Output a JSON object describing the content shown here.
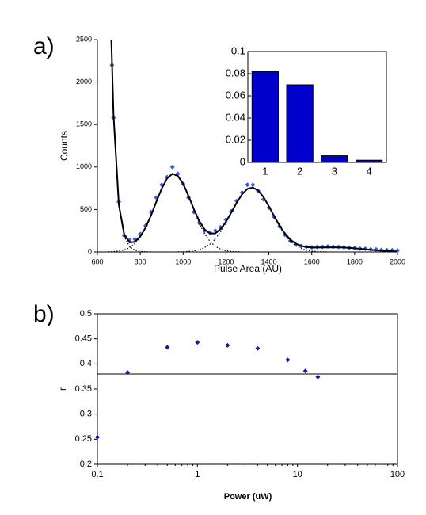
{
  "chart_data": [
    {
      "type": "scatter",
      "panel_label": "a)",
      "xlabel": "Pulse Area (AU)",
      "ylabel": "Counts",
      "xlim": [
        600,
        2000
      ],
      "xticks": [
        600,
        800,
        1000,
        1200,
        1400,
        1600,
        1800,
        2000
      ],
      "ylim": [
        0,
        2500
      ],
      "yticks": [
        0,
        500,
        1000,
        1500,
        2000,
        2500
      ],
      "series": [
        {
          "mode": "markers",
          "color": "#3a5ae0",
          "x": [
            668,
            675,
            700,
            725,
            750,
            775,
            800,
            825,
            850,
            875,
            900,
            925,
            950,
            975,
            1000,
            1025,
            1050,
            1075,
            1100,
            1125,
            1150,
            1175,
            1200,
            1225,
            1250,
            1275,
            1300,
            1325,
            1350,
            1375,
            1400,
            1425,
            1450,
            1475,
            1500,
            1525,
            1550,
            1575,
            1600,
            1625,
            1650,
            1675,
            1700,
            1725,
            1750,
            1775,
            1800,
            1825,
            1850,
            1875,
            1900,
            1925,
            1950,
            1975,
            2000
          ],
          "values": [
            2200,
            1580,
            590,
            190,
            140,
            150,
            210,
            310,
            470,
            640,
            790,
            880,
            1000,
            920,
            800,
            640,
            470,
            340,
            250,
            230,
            250,
            290,
            380,
            480,
            600,
            700,
            790,
            790,
            720,
            620,
            520,
            410,
            300,
            200,
            130,
            90,
            70,
            60,
            55,
            60,
            60,
            65,
            62,
            60,
            55,
            50,
            45,
            40,
            38,
            32,
            30,
            25,
            22,
            20,
            18
          ]
        },
        {
          "mode": "line",
          "dash": false,
          "color": "#000000",
          "x": [
            665,
            675,
            700,
            725,
            750,
            775,
            800,
            825,
            850,
            875,
            900,
            925,
            950,
            975,
            1000,
            1025,
            1050,
            1075,
            1100,
            1125,
            1150,
            1175,
            1200,
            1225,
            1250,
            1275,
            1300,
            1325,
            1350,
            1375,
            1400,
            1425,
            1450,
            1475,
            1500,
            1525,
            1550,
            1575,
            1600,
            1625,
            1650,
            1675,
            1700,
            1725,
            1750,
            1775,
            1800,
            1825,
            1850,
            1875,
            1900,
            1925,
            1950,
            1975,
            2000
          ],
          "values": [
            2500,
            1622,
            556,
            208,
            112,
            119,
            182,
            287,
            429,
            591,
            746,
            865,
            920,
            895,
            803,
            661,
            505,
            366,
            267,
            217,
            219,
            269,
            357,
            467,
            581,
            679,
            743,
            759,
            723,
            647,
            538,
            420,
            309,
            216,
            146,
            99,
            72,
            58,
            53,
            52,
            54,
            54,
            55,
            54,
            52,
            48,
            43,
            37,
            31,
            25,
            20,
            15,
            11,
            8,
            5
          ]
        },
        {
          "mode": "line",
          "dash": true,
          "color": "#000000",
          "x": [
            665,
            675,
            700,
            725,
            750,
            775,
            800,
            825,
            850
          ],
          "values": [
            2500,
            1618,
            546,
            184,
            62,
            21,
            7,
            2,
            0
          ]
        },
        {
          "mode": "line",
          "dash": true,
          "color": "#000000",
          "x": [
            650,
            675,
            700,
            725,
            750,
            775,
            800,
            825,
            850,
            875,
            900,
            925,
            950,
            975,
            1000,
            1025,
            1050,
            1075,
            1100,
            1125,
            1150,
            1175,
            1200,
            1225,
            1250,
            1275
          ],
          "values": [
            2,
            4,
            10,
            24,
            50,
            98,
            175,
            285,
            429,
            591,
            746,
            865,
            920,
            895,
            800,
            655,
            492,
            339,
            215,
            125,
            66,
            32,
            15,
            6,
            2,
            0
          ]
        },
        {
          "mode": "line",
          "dash": true,
          "color": "#000000",
          "x": [
            975,
            1000,
            1025,
            1050,
            1075,
            1100,
            1125,
            1150,
            1175,
            1200,
            1225,
            1250,
            1275,
            1300,
            1325,
            1350,
            1375,
            1400,
            1425,
            1450,
            1475,
            1500,
            1525,
            1550,
            1575,
            1600,
            1625,
            1650,
            1675
          ],
          "values": [
            1,
            3,
            6,
            13,
            27,
            52,
            92,
            153,
            237,
            342,
            461,
            579,
            679,
            743,
            759,
            723,
            643,
            533,
            412,
            298,
            201,
            126,
            74,
            41,
            21,
            10,
            4,
            2,
            0
          ]
        }
      ]
    },
    {
      "type": "bar",
      "categories": [
        "1",
        "2",
        "3",
        "4"
      ],
      "values": [
        0.082,
        0.07,
        0.006,
        0.002
      ],
      "color": "#0000cc",
      "ylim": [
        0,
        0.1
      ],
      "yticks": [
        0,
        0.02,
        0.04,
        0.06,
        0.08,
        0.1
      ]
    },
    {
      "type": "scatter",
      "panel_label": "b)",
      "xlabel": "Power (uW)",
      "ylabel": "r",
      "xlog": true,
      "xlim": [
        0.1,
        100
      ],
      "xticks": [
        0.1,
        1,
        10,
        100
      ],
      "ylim": [
        0.2,
        0.5
      ],
      "yticks": [
        0.2,
        0.25,
        0.3,
        0.35,
        0.4,
        0.45,
        0.5
      ],
      "reference_line": 0.38,
      "series": [
        {
          "mode": "markers",
          "color": "#1a1aa0",
          "x": [
            0.1,
            0.2,
            0.5,
            1,
            2,
            4,
            8,
            12,
            16
          ],
          "values": [
            0.254,
            0.383,
            0.433,
            0.443,
            0.437,
            0.431,
            0.408,
            0.386,
            0.374
          ]
        }
      ]
    }
  ]
}
